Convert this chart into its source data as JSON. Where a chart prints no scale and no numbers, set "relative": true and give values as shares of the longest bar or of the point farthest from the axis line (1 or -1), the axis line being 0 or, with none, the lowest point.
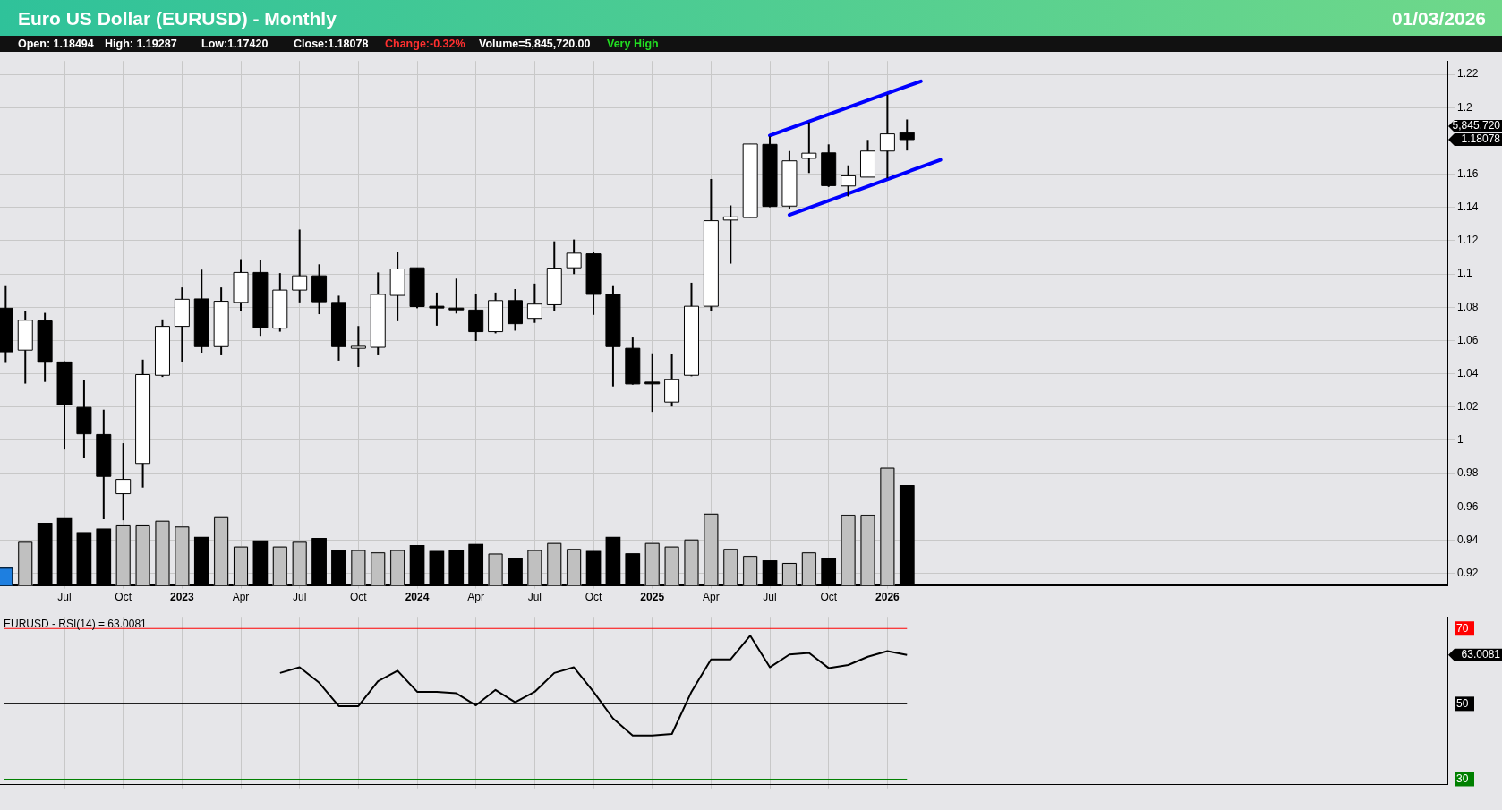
{
  "chart_data": [
    {
      "type": "candlestick",
      "title": "Euro US Dollar (EURUSD) - Monthly",
      "subtitle": "01/03/2026",
      "x": [
        "2022-04",
        "2022-05",
        "2022-06",
        "2022-07",
        "2022-08",
        "2022-09",
        "2022-10",
        "2022-11",
        "2022-12",
        "2023-01",
        "2023-02",
        "2023-03",
        "2023-04",
        "2023-05",
        "2023-06",
        "2023-07",
        "2023-08",
        "2023-09",
        "2023-10",
        "2023-11",
        "2023-12",
        "2024-01",
        "2024-02",
        "2024-03",
        "2024-04",
        "2024-05",
        "2024-06",
        "2024-07",
        "2024-08",
        "2024-09",
        "2024-10",
        "2024-11",
        "2024-12",
        "2025-01",
        "2025-02",
        "2025-03",
        "2025-04",
        "2025-05",
        "2025-06",
        "2025-07",
        "2025-08",
        "2025-09",
        "2025-10",
        "2025-11",
        "2025-12",
        "2026-01",
        "2026-02"
      ],
      "ohlc": [
        [
          1.0794,
          1.0932,
          1.0465,
          1.0532
        ],
        [
          1.0542,
          1.0777,
          1.0341,
          1.0722
        ],
        [
          1.0718,
          1.0766,
          1.0351,
          1.0469
        ],
        [
          1.0471,
          1.0475,
          0.9945,
          1.0213
        ],
        [
          1.0198,
          1.036,
          0.9892,
          1.0039
        ],
        [
          1.0035,
          1.0184,
          0.9526,
          0.9783
        ],
        [
          0.9679,
          0.9983,
          0.952,
          0.9765
        ],
        [
          0.9861,
          1.0485,
          0.9716,
          1.0395
        ],
        [
          1.0391,
          1.0727,
          1.0381,
          1.0685
        ],
        [
          1.0685,
          1.0919,
          1.0473,
          1.0848
        ],
        [
          1.085,
          1.1026,
          1.0527,
          1.0563
        ],
        [
          1.0563,
          1.0919,
          1.0511,
          1.0836
        ],
        [
          1.0829,
          1.1089,
          1.0779,
          1.1009
        ],
        [
          1.1009,
          1.1083,
          1.0628,
          1.0678
        ],
        [
          1.0674,
          1.1005,
          1.0653,
          1.0903
        ],
        [
          1.0903,
          1.1267,
          1.0829,
          1.0989
        ],
        [
          1.0989,
          1.1058,
          1.0758,
          1.0833
        ],
        [
          1.0829,
          1.0869,
          1.0479,
          1.0563
        ],
        [
          1.0553,
          1.0687,
          1.0441,
          1.0565
        ],
        [
          1.0559,
          1.1009,
          1.0511,
          1.0877
        ],
        [
          1.0871,
          1.1131,
          1.0716,
          1.103
        ],
        [
          1.1037,
          1.1037,
          1.0794,
          1.0804
        ],
        [
          1.0806,
          1.0888,
          1.0689,
          1.0804
        ],
        [
          1.0795,
          1.0972,
          1.0762,
          1.079
        ],
        [
          1.0783,
          1.088,
          1.0597,
          1.0653
        ],
        [
          1.0653,
          1.0888,
          1.0643,
          1.084
        ],
        [
          1.084,
          1.0909,
          1.0659,
          1.0701
        ],
        [
          1.0733,
          1.0942,
          1.0706,
          1.0819
        ],
        [
          1.0815,
          1.1196,
          1.0775,
          1.1035
        ],
        [
          1.1037,
          1.1207,
          1.0999,
          1.1125
        ],
        [
          1.1121,
          1.1135,
          1.0754,
          1.0877
        ],
        [
          1.0877,
          1.0932,
          1.0324,
          1.0563
        ],
        [
          1.0553,
          1.0618,
          1.0335,
          1.0339
        ],
        [
          1.035,
          1.0523,
          1.0171,
          1.0348
        ],
        [
          1.023,
          1.0517,
          1.0203,
          1.0364
        ],
        [
          1.0391,
          1.0947,
          1.0385,
          1.0806
        ],
        [
          1.0806,
          1.1571,
          1.0775,
          1.132
        ],
        [
          1.1324,
          1.1412,
          1.1062,
          1.1343
        ],
        [
          1.1339,
          1.1781,
          1.1339,
          1.1781
        ],
        [
          1.1779,
          1.1827,
          1.1401,
          1.1406
        ],
        [
          1.1408,
          1.1739,
          1.1391,
          1.168
        ],
        [
          1.1695,
          1.1911,
          1.1607,
          1.1726
        ],
        [
          1.1728,
          1.1779,
          1.1523,
          1.1531
        ],
        [
          1.1529,
          1.1653,
          1.1466,
          1.159
        ],
        [
          1.1582,
          1.1806,
          1.1582,
          1.1739
        ],
        [
          1.1739,
          1.2078,
          1.1575,
          1.1842
        ],
        [
          1.18494,
          1.19287,
          1.1742,
          1.18078
        ]
      ],
      "series": [
        {
          "type": "line",
          "color": "#0000ff",
          "x": [
            "2025-07-01",
            "2026-02-23"
          ],
          "values": [
            1.1833,
            1.2158
          ]
        },
        {
          "type": "line",
          "color": "#0000ff",
          "x": [
            "2025-08-01",
            "2026-03-23"
          ],
          "values": [
            1.1355,
            1.1686
          ]
        }
      ],
      "xlim": [
        "2022-03-23",
        "2028-05-19"
      ],
      "xticks": [
        {
          "value": "2022-07",
          "label": "Jul"
        },
        {
          "value": "2022-10",
          "label": "Oct"
        },
        {
          "value": "2023-01",
          "label": "2023"
        },
        {
          "value": "2023-04",
          "label": "Apr"
        },
        {
          "value": "2023-07",
          "label": "Jul"
        },
        {
          "value": "2023-10",
          "label": "Oct"
        },
        {
          "value": "2024-01",
          "label": "2024"
        },
        {
          "value": "2024-04",
          "label": "Apr"
        },
        {
          "value": "2024-07",
          "label": "Jul"
        },
        {
          "value": "2024-10",
          "label": "Oct"
        },
        {
          "value": "2025-01",
          "label": "2025"
        },
        {
          "value": "2025-04",
          "label": "Apr"
        },
        {
          "value": "2025-07",
          "label": "Jul"
        },
        {
          "value": "2025-10",
          "label": "Oct"
        },
        {
          "value": "2026-01",
          "label": "2026"
        }
      ],
      "ylim": [
        0.913,
        1.228
      ],
      "yticks": [
        0.92,
        0.94,
        0.96,
        0.98,
        1,
        1.02,
        1.04,
        1.06,
        1.08,
        1.1,
        1.12,
        1.14,
        1.16,
        {
          "value": 1.18,
          "label": null
        },
        1.2,
        1.22
      ],
      "grid": true,
      "legend": false,
      "annotations": [
        "Open: 1.18494",
        "High: 1.19287",
        "Low:1.17420",
        "Close:1.18078",
        "Change:-0.32%",
        "Volume=5,845,720.00",
        "Very High",
        "5,845,720",
        "1.18078"
      ]
    },
    {
      "type": "bar",
      "relative": true,
      "x": [
        "2022-04",
        "2022-05",
        "2022-06",
        "2022-07",
        "2022-08",
        "2022-09",
        "2022-10",
        "2022-11",
        "2022-12",
        "2023-01",
        "2023-02",
        "2023-03",
        "2023-04",
        "2023-05",
        "2023-06",
        "2023-07",
        "2023-08",
        "2023-09",
        "2023-10",
        "2023-11",
        "2023-12",
        "2024-01",
        "2024-02",
        "2024-03",
        "2024-04",
        "2024-05",
        "2024-06",
        "2024-07",
        "2024-08",
        "2024-09",
        "2024-10",
        "2024-11",
        "2024-12",
        "2025-01",
        "2025-02",
        "2025-03",
        "2025-04",
        "2025-05",
        "2025-06",
        "2025-07",
        "2025-08",
        "2025-09",
        "2025-10",
        "2025-11",
        "2025-12",
        "2026-01",
        "2026-02"
      ],
      "values": [
        0.15,
        0.37,
        0.53,
        0.57,
        0.45,
        0.48,
        0.51,
        0.51,
        0.55,
        0.5,
        0.41,
        0.58,
        0.33,
        0.38,
        0.33,
        0.37,
        0.4,
        0.3,
        0.3,
        0.28,
        0.3,
        0.34,
        0.29,
        0.3,
        0.35,
        0.27,
        0.23,
        0.3,
        0.36,
        0.31,
        0.29,
        0.41,
        0.27,
        0.36,
        0.33,
        0.39,
        0.61,
        0.31,
        0.25,
        0.21,
        0.19,
        0.28,
        0.23,
        0.6,
        0.6,
        1,
        0.85
      ],
      "colors": [
        "#1e7fe0",
        "#c0c0c0",
        "#000000",
        "#000000",
        "#000000",
        "#000000",
        "#c0c0c0",
        "#c0c0c0",
        "#c0c0c0",
        "#c0c0c0",
        "#000000",
        "#c0c0c0",
        "#c0c0c0",
        "#000000",
        "#c0c0c0",
        "#c0c0c0",
        "#000000",
        "#000000",
        "#c0c0c0",
        "#c0c0c0",
        "#c0c0c0",
        "#000000",
        "#000000",
        "#000000",
        "#000000",
        "#c0c0c0",
        "#000000",
        "#c0c0c0",
        "#c0c0c0",
        "#c0c0c0",
        "#000000",
        "#000000",
        "#000000",
        "#c0c0c0",
        "#c0c0c0",
        "#c0c0c0",
        "#c0c0c0",
        "#c0c0c0",
        "#c0c0c0",
        "#000000",
        "#c0c0c0",
        "#c0c0c0",
        "#000000",
        "#c0c0c0",
        "#c0c0c0",
        "#c0c0c0",
        "#000000"
      ],
      "xlim": [
        "2022-03-23",
        "2028-05-19"
      ],
      "tick_labels": false,
      "legend": false
    },
    {
      "type": "line",
      "title": "EURUSD - RSI(14) = 63.0081",
      "x": [
        "2023-06",
        "2023-07",
        "2023-08",
        "2023-09",
        "2023-10",
        "2023-11",
        "2023-12",
        "2024-01",
        "2024-02",
        "2024-03",
        "2024-04",
        "2024-05",
        "2024-06",
        "2024-07",
        "2024-08",
        "2024-09",
        "2024-10",
        "2024-11",
        "2024-12",
        "2025-01",
        "2025-02",
        "2025-03",
        "2025-04",
        "2025-05",
        "2025-06",
        "2025-07",
        "2025-08",
        "2025-09",
        "2025-10",
        "2025-11",
        "2025-12",
        "2026-01",
        "2026-02"
      ],
      "series": [
        {
          "color": "#000000",
          "values": [
            58.2,
            59.7,
            55.6,
            49.4,
            49.4,
            56.0,
            58.8,
            53.2,
            53.2,
            52.8,
            49.6,
            53.7,
            50.4,
            53.2,
            58.2,
            59.7,
            53.2,
            46.1,
            41.6,
            41.6,
            42.0,
            53.2,
            61.8,
            61.8,
            68.1,
            59.7,
            63.1,
            63.5,
            59.5,
            60.3,
            62.5,
            64.0,
            63.0
          ]
        }
      ],
      "xlim": [
        "2022-03-23",
        "2028-05-19"
      ],
      "xticks": [
        {
          "value": "2022-07",
          "label": null
        },
        {
          "value": "2022-10",
          "label": null
        },
        {
          "value": "2023-01",
          "label": null
        },
        {
          "value": "2023-04",
          "label": null
        },
        {
          "value": "2023-07",
          "label": null
        },
        {
          "value": "2023-10",
          "label": null
        },
        {
          "value": "2024-01",
          "label": null
        },
        {
          "value": "2024-04",
          "label": null
        },
        {
          "value": "2024-07",
          "label": null
        },
        {
          "value": "2024-10",
          "label": null
        },
        {
          "value": "2025-01",
          "label": null
        },
        {
          "value": "2025-04",
          "label": null
        },
        {
          "value": "2025-07",
          "label": null
        },
        {
          "value": "2025-10",
          "label": null
        },
        {
          "value": "2026-01",
          "label": null
        }
      ],
      "ylim": [
        28.5,
        73.1
      ],
      "yticks": [
        30,
        50,
        70
      ],
      "ref_lines": [
        {
          "axis": "y",
          "value": 70,
          "color": "#ff0000"
        },
        {
          "axis": "y",
          "value": 50,
          "color": "#000000"
        },
        {
          "axis": "y",
          "value": 30,
          "color": "#008000"
        }
      ],
      "tick_labels": "y",
      "grid": "x",
      "legend": false,
      "marker": "none",
      "line_style": "solid",
      "annotations": [
        "63.0081"
      ]
    }
  ]
}
